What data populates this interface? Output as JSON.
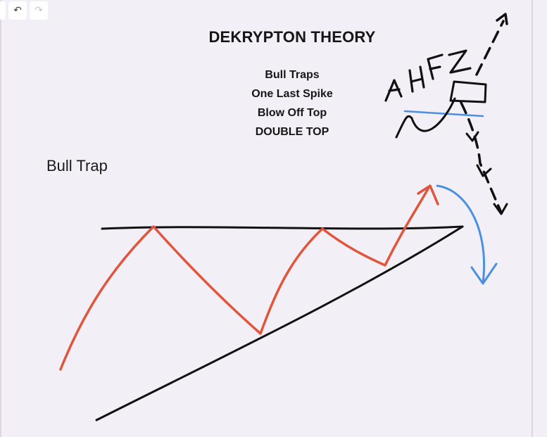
{
  "toolbar": {
    "undo_icon": "undo-icon",
    "redo_icon": "redo-icon"
  },
  "title": "DEKRYPTON THEORY",
  "notes": [
    "Bull Traps",
    "One Last Spike",
    "Blow Off Top",
    "DOUBLE TOP"
  ],
  "chart_label": "Bull Trap",
  "handwriting": "AH FZ",
  "colors": {
    "background": "#f3eff6",
    "price_path": "#e0563c",
    "trendlines": "#111111",
    "drop_arrow": "#4a90e2"
  }
}
